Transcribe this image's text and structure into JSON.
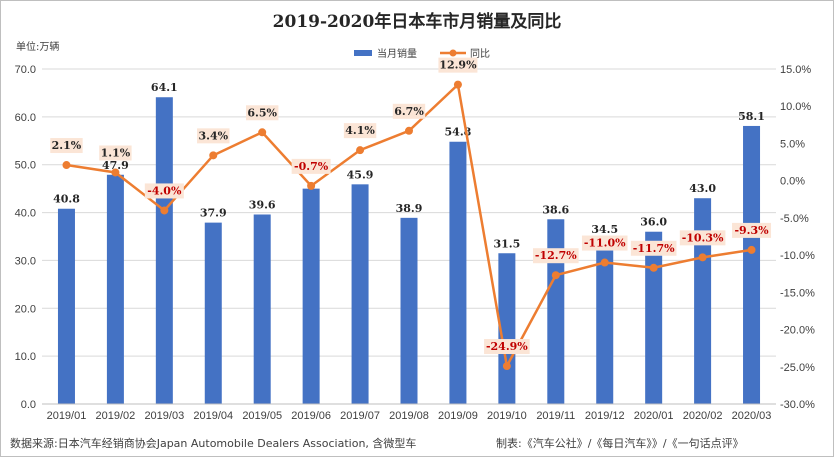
{
  "chart_data": {
    "type": "bar",
    "title": "2019-2020年日本车市月销量及同比",
    "unit_label": "单位:万辆",
    "categories": [
      "2019/01",
      "2019/02",
      "2019/03",
      "2019/04",
      "2019/05",
      "2019/06",
      "2019/07",
      "2019/08",
      "2019/09",
      "2019/10",
      "2019/11",
      "2019/12",
      "2020/01",
      "2020/02",
      "2020/03"
    ],
    "series": [
      {
        "name": "当月销量",
        "type": "bar",
        "axis": "left",
        "color": "#4472c4",
        "values": [
          40.8,
          47.9,
          64.1,
          37.9,
          39.6,
          45.0,
          45.9,
          38.9,
          54.8,
          31.5,
          38.6,
          34.5,
          36.0,
          43.0,
          58.1
        ],
        "labels": [
          "40.8",
          "47.9",
          "64.1",
          "37.9",
          "39.6",
          "",
          "45.9",
          "38.9",
          "54.8",
          "31.5",
          "38.6",
          "34.5",
          "36.0",
          "43.0",
          "58.1"
        ]
      },
      {
        "name": "同比",
        "type": "line",
        "axis": "right",
        "color": "#ed7d31",
        "values": [
          2.1,
          1.1,
          -4.0,
          3.4,
          6.5,
          -0.7,
          4.1,
          6.7,
          12.9,
          -24.9,
          -12.7,
          -11.0,
          -11.7,
          -10.3,
          -9.3
        ],
        "labels": [
          "2.1%",
          "1.1%",
          "-4.0%",
          "3.4%",
          "6.5%",
          "-0.7%",
          "4.1%",
          "6.7%",
          "12.9%",
          "-24.9%",
          "-12.7%",
          "-11.0%",
          "-11.7%",
          "-10.3%",
          "-9.3%"
        ]
      }
    ],
    "y_left": {
      "min": 0,
      "max": 70,
      "step": 10,
      "tick_labels": [
        "0.0",
        "10.0",
        "20.0",
        "30.0",
        "40.0",
        "50.0",
        "60.0",
        "70.0"
      ]
    },
    "y_right": {
      "min": -30,
      "max": 15,
      "step": 5,
      "tick_labels": [
        "-30.0%",
        "-25.0%",
        "-20.0%",
        "-15.0%",
        "-10.0%",
        "-5.0%",
        "0.0%",
        "5.0%",
        "10.0%",
        "15.0%"
      ]
    },
    "legend_position": "top-center",
    "grid": true,
    "positive_label_color": "#262626",
    "negative_label_color": "#c00000"
  },
  "footer": {
    "source": "数据来源:日本汽车经销商协会Japan Automobile Dealers Association, 含微型车",
    "credit": "制表:《汽车公社》/《每日汽车》》/《一句话点评》"
  }
}
